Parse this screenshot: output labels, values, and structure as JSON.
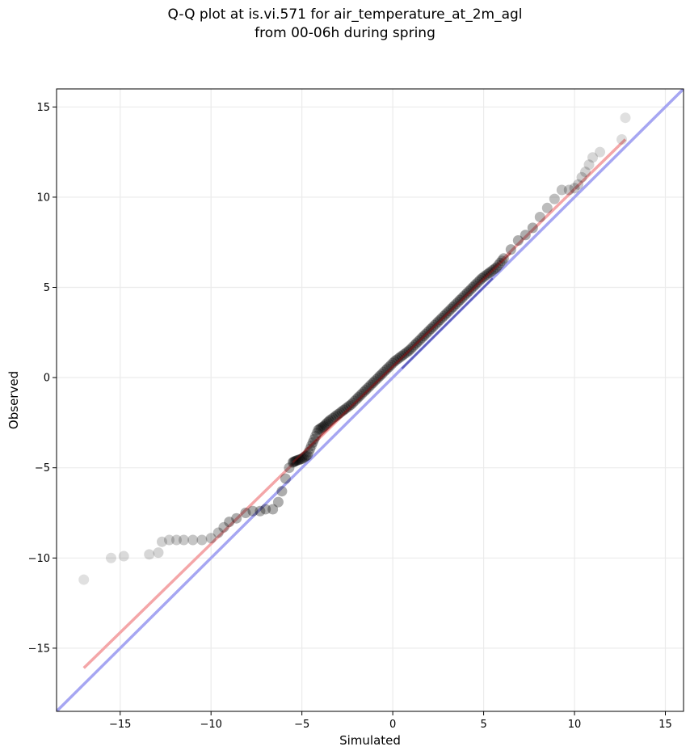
{
  "chart_data": {
    "type": "scatter",
    "title_lines": [
      "Q-Q plot at is.vi.571 for air_temperature_at_2m_agl",
      "from 00-06h during spring"
    ],
    "xlabel": "Simulated",
    "ylabel": "Observed",
    "xlim": [
      -18.5,
      16
    ],
    "ylim": [
      -18.5,
      16
    ],
    "xticks": [
      -15,
      -10,
      -5,
      0,
      5,
      10,
      15
    ],
    "yticks": [
      -15,
      -10,
      -5,
      0,
      5,
      10,
      15
    ],
    "tick_labels": [
      "−15",
      "−10",
      "−5",
      "0",
      "5",
      "10",
      "15"
    ],
    "grid": true,
    "colors": {
      "points": "#000000",
      "fit_line": "#f4a6a8",
      "identity_line": "#a6a6f2",
      "central_fit": "#8b1a1a",
      "central_identity": "#1a1a8b"
    },
    "series": [
      {
        "kind": "quantile_points",
        "x": [
          -17.0,
          -15.5,
          -14.8,
          -13.4,
          -12.9,
          -12.7,
          -12.3,
          -11.9,
          -11.5,
          -11.0,
          -10.5,
          -10.0,
          -9.6,
          -9.3,
          -9.0,
          -8.6,
          -8.1,
          -7.7,
          -7.3,
          -7.0,
          -6.6,
          -6.3,
          -6.1,
          -5.9,
          -5.7,
          -5.5,
          -5.3,
          -5.0,
          -4.7,
          -4.4,
          -4.1,
          -3.8,
          -3.5,
          -3.1,
          -2.7,
          -2.3,
          -1.9,
          -1.5,
          -1.1,
          -0.7,
          -0.3,
          0.1,
          0.5,
          0.9,
          1.3,
          1.7,
          2.1,
          2.5,
          2.9,
          3.3,
          3.7,
          4.1,
          4.5,
          4.9,
          5.3,
          5.7,
          6.1,
          6.5,
          6.9,
          7.3,
          7.7,
          8.1,
          8.5,
          8.9,
          9.3,
          9.7,
          10.0,
          10.2,
          10.4,
          10.6,
          10.8,
          11.0,
          11.4,
          12.6,
          12.8
        ],
        "y": [
          -11.2,
          -10.0,
          -9.9,
          -9.8,
          -9.7,
          -9.1,
          -9.0,
          -9.0,
          -9.0,
          -9.0,
          -9.0,
          -8.9,
          -8.6,
          -8.3,
          -8.0,
          -7.8,
          -7.5,
          -7.4,
          -7.4,
          -7.3,
          -7.3,
          -6.9,
          -6.3,
          -5.6,
          -5.0,
          -4.7,
          -4.6,
          -4.5,
          -4.3,
          -3.6,
          -2.9,
          -2.7,
          -2.4,
          -2.1,
          -1.8,
          -1.5,
          -1.1,
          -0.7,
          -0.3,
          0.1,
          0.5,
          0.9,
          1.2,
          1.5,
          1.9,
          2.3,
          2.7,
          3.1,
          3.5,
          3.9,
          4.3,
          4.7,
          5.1,
          5.5,
          5.8,
          6.1,
          6.6,
          7.1,
          7.6,
          7.9,
          8.3,
          8.9,
          9.4,
          9.9,
          10.4,
          10.4,
          10.5,
          10.7,
          11.1,
          11.4,
          11.8,
          12.2,
          12.5,
          13.2,
          14.4
        ]
      },
      {
        "kind": "fit_line",
        "x": [
          -17.0,
          12.8
        ],
        "y": [
          -16.1,
          13.2
        ]
      },
      {
        "kind": "identity_line",
        "x": [
          -18.5,
          16
        ],
        "y": [
          -18.5,
          16
        ]
      }
    ]
  }
}
